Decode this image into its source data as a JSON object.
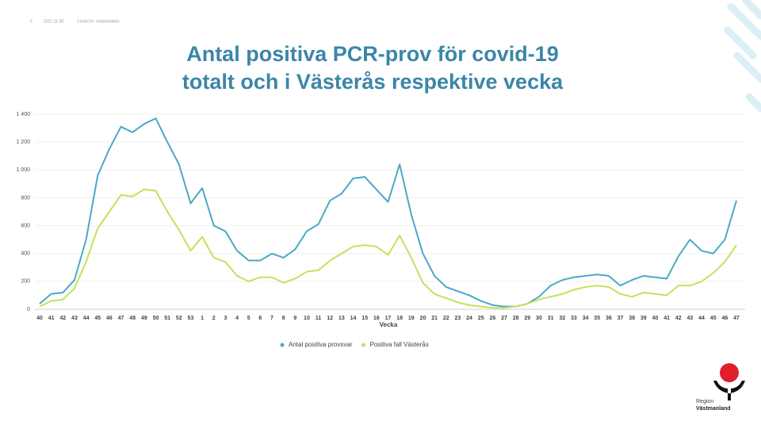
{
  "header": {
    "page": "5",
    "date": "2021-11-30",
    "source": "Covid-19 i Västmanland"
  },
  "chart_data": {
    "type": "line",
    "title": "Antal positiva PCR-prov för covid-19",
    "subtitle": "totalt och i Västerås respektive vecka",
    "x_label": "Vecka",
    "categories": [
      "40",
      "41",
      "42",
      "43",
      "44",
      "45",
      "46",
      "47",
      "48",
      "49",
      "50",
      "51",
      "52",
      "53",
      "1",
      "2",
      "3",
      "4",
      "5",
      "6",
      "7",
      "8",
      "9",
      "10",
      "11",
      "12",
      "13",
      "14",
      "15",
      "16",
      "17",
      "18",
      "19",
      "20",
      "21",
      "22",
      "23",
      "24",
      "25",
      "26",
      "27",
      "28",
      "29",
      "30",
      "31",
      "32",
      "33",
      "34",
      "35",
      "36",
      "37",
      "38",
      "39",
      "40",
      "41",
      "42",
      "43",
      "44",
      "45",
      "46",
      "47"
    ],
    "series": [
      {
        "name": "Antal positiva provsvar",
        "color": "#4aa8c8",
        "values": [
          40,
          110,
          120,
          210,
          500,
          960,
          1150,
          1310,
          1270,
          1330,
          1370,
          1200,
          1040,
          760,
          870,
          600,
          560,
          420,
          350,
          350,
          400,
          370,
          430,
          560,
          610,
          780,
          830,
          940,
          950,
          860,
          770,
          1040,
          680,
          400,
          240,
          160,
          130,
          100,
          60,
          30,
          20,
          20,
          40,
          90,
          170,
          210,
          230,
          240,
          250,
          240,
          170,
          210,
          240,
          230,
          220,
          380,
          500,
          420,
          400,
          500,
          780
        ]
      },
      {
        "name": "Positiva fall Västerås",
        "color": "#c3e25a",
        "values": [
          20,
          60,
          70,
          150,
          340,
          580,
          700,
          820,
          810,
          860,
          850,
          700,
          570,
          420,
          520,
          370,
          340,
          240,
          200,
          230,
          230,
          190,
          220,
          270,
          280,
          350,
          400,
          450,
          460,
          450,
          390,
          530,
          370,
          190,
          110,
          80,
          50,
          30,
          20,
          10,
          10,
          20,
          40,
          70,
          90,
          110,
          140,
          160,
          170,
          160,
          110,
          90,
          120,
          110,
          100,
          170,
          170,
          200,
          260,
          340,
          460
        ]
      }
    ],
    "ylim": [
      0,
      1400
    ],
    "yticks": [
      0,
      200,
      400,
      600,
      800,
      {
        "value": 1000,
        "label": "1 000"
      },
      {
        "value": 1200,
        "label": "1 200"
      },
      {
        "value": 1400,
        "label": "1 400"
      }
    ],
    "grid": true,
    "legend": "bottom"
  },
  "logo": {
    "line1": "Region",
    "line2": "Västmanland"
  }
}
